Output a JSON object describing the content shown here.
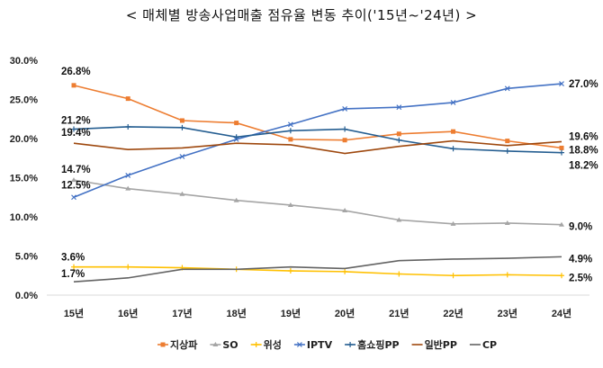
{
  "title": "< 매체별 방송사업매출 점유율 변동 추이('15년~'24년) >",
  "chart_data": {
    "type": "line",
    "title": "< 매체별 방송사업매출 점유율 변동 추이('15년~'24년) >",
    "categories": [
      "15년",
      "16년",
      "17년",
      "18년",
      "19년",
      "20년",
      "21년",
      "22년",
      "23년",
      "24년"
    ],
    "ylim": [
      0,
      30
    ],
    "yticks": [
      "0.0%",
      "5.0%",
      "10.0%",
      "15.0%",
      "20.0%",
      "25.0%",
      "30.0%"
    ],
    "grid": false,
    "legend": "bottom",
    "series": [
      {
        "name": "지상파",
        "color": "#ED7D31",
        "marker": "square",
        "values": [
          26.8,
          25.1,
          22.3,
          22.0,
          19.9,
          19.8,
          20.6,
          20.9,
          19.7,
          18.8
        ],
        "labels": {
          "first": "26.8%",
          "last": "18.8%"
        }
      },
      {
        "name": "SO",
        "color": "#A5A5A5",
        "marker": "triangle",
        "values": [
          14.7,
          13.6,
          12.9,
          12.1,
          11.5,
          10.8,
          9.6,
          9.1,
          9.2,
          9.0
        ],
        "labels": {
          "first": "14.7%",
          "last": "9.0%"
        }
      },
      {
        "name": "위성",
        "color": "#FFC000",
        "marker": "cross",
        "values": [
          3.6,
          3.6,
          3.5,
          3.3,
          3.1,
          3.0,
          2.7,
          2.5,
          2.6,
          2.5
        ],
        "labels": {
          "first": "3.6%",
          "last": "2.5%"
        }
      },
      {
        "name": "IPTV",
        "color": "#4472C4",
        "marker": "x",
        "values": [
          12.5,
          15.3,
          17.7,
          19.9,
          21.8,
          23.8,
          24.0,
          24.6,
          26.4,
          27.0
        ],
        "labels": {
          "first": "12.5%",
          "last": "27.0%"
        }
      },
      {
        "name": "홈쇼핑PP",
        "color": "#255E91",
        "marker": "plus",
        "values": [
          21.2,
          21.5,
          21.4,
          20.2,
          21.0,
          21.2,
          19.8,
          18.7,
          18.4,
          18.2
        ],
        "labels": {
          "first": "21.2%",
          "last": "18.2%"
        }
      },
      {
        "name": "일반PP",
        "color": "#9E480E",
        "marker": "none",
        "values": [
          19.4,
          18.6,
          18.8,
          19.4,
          19.2,
          18.1,
          19.0,
          19.7,
          19.1,
          19.6
        ],
        "labels": {
          "first": "19.4%",
          "last": "19.6%"
        }
      },
      {
        "name": "CP",
        "color": "#636363",
        "marker": "none",
        "values": [
          1.7,
          2.2,
          3.3,
          3.3,
          3.6,
          3.4,
          4.4,
          4.6,
          4.7,
          4.9
        ],
        "labels": {
          "first": "1.7%",
          "last": "4.9%"
        }
      }
    ]
  }
}
